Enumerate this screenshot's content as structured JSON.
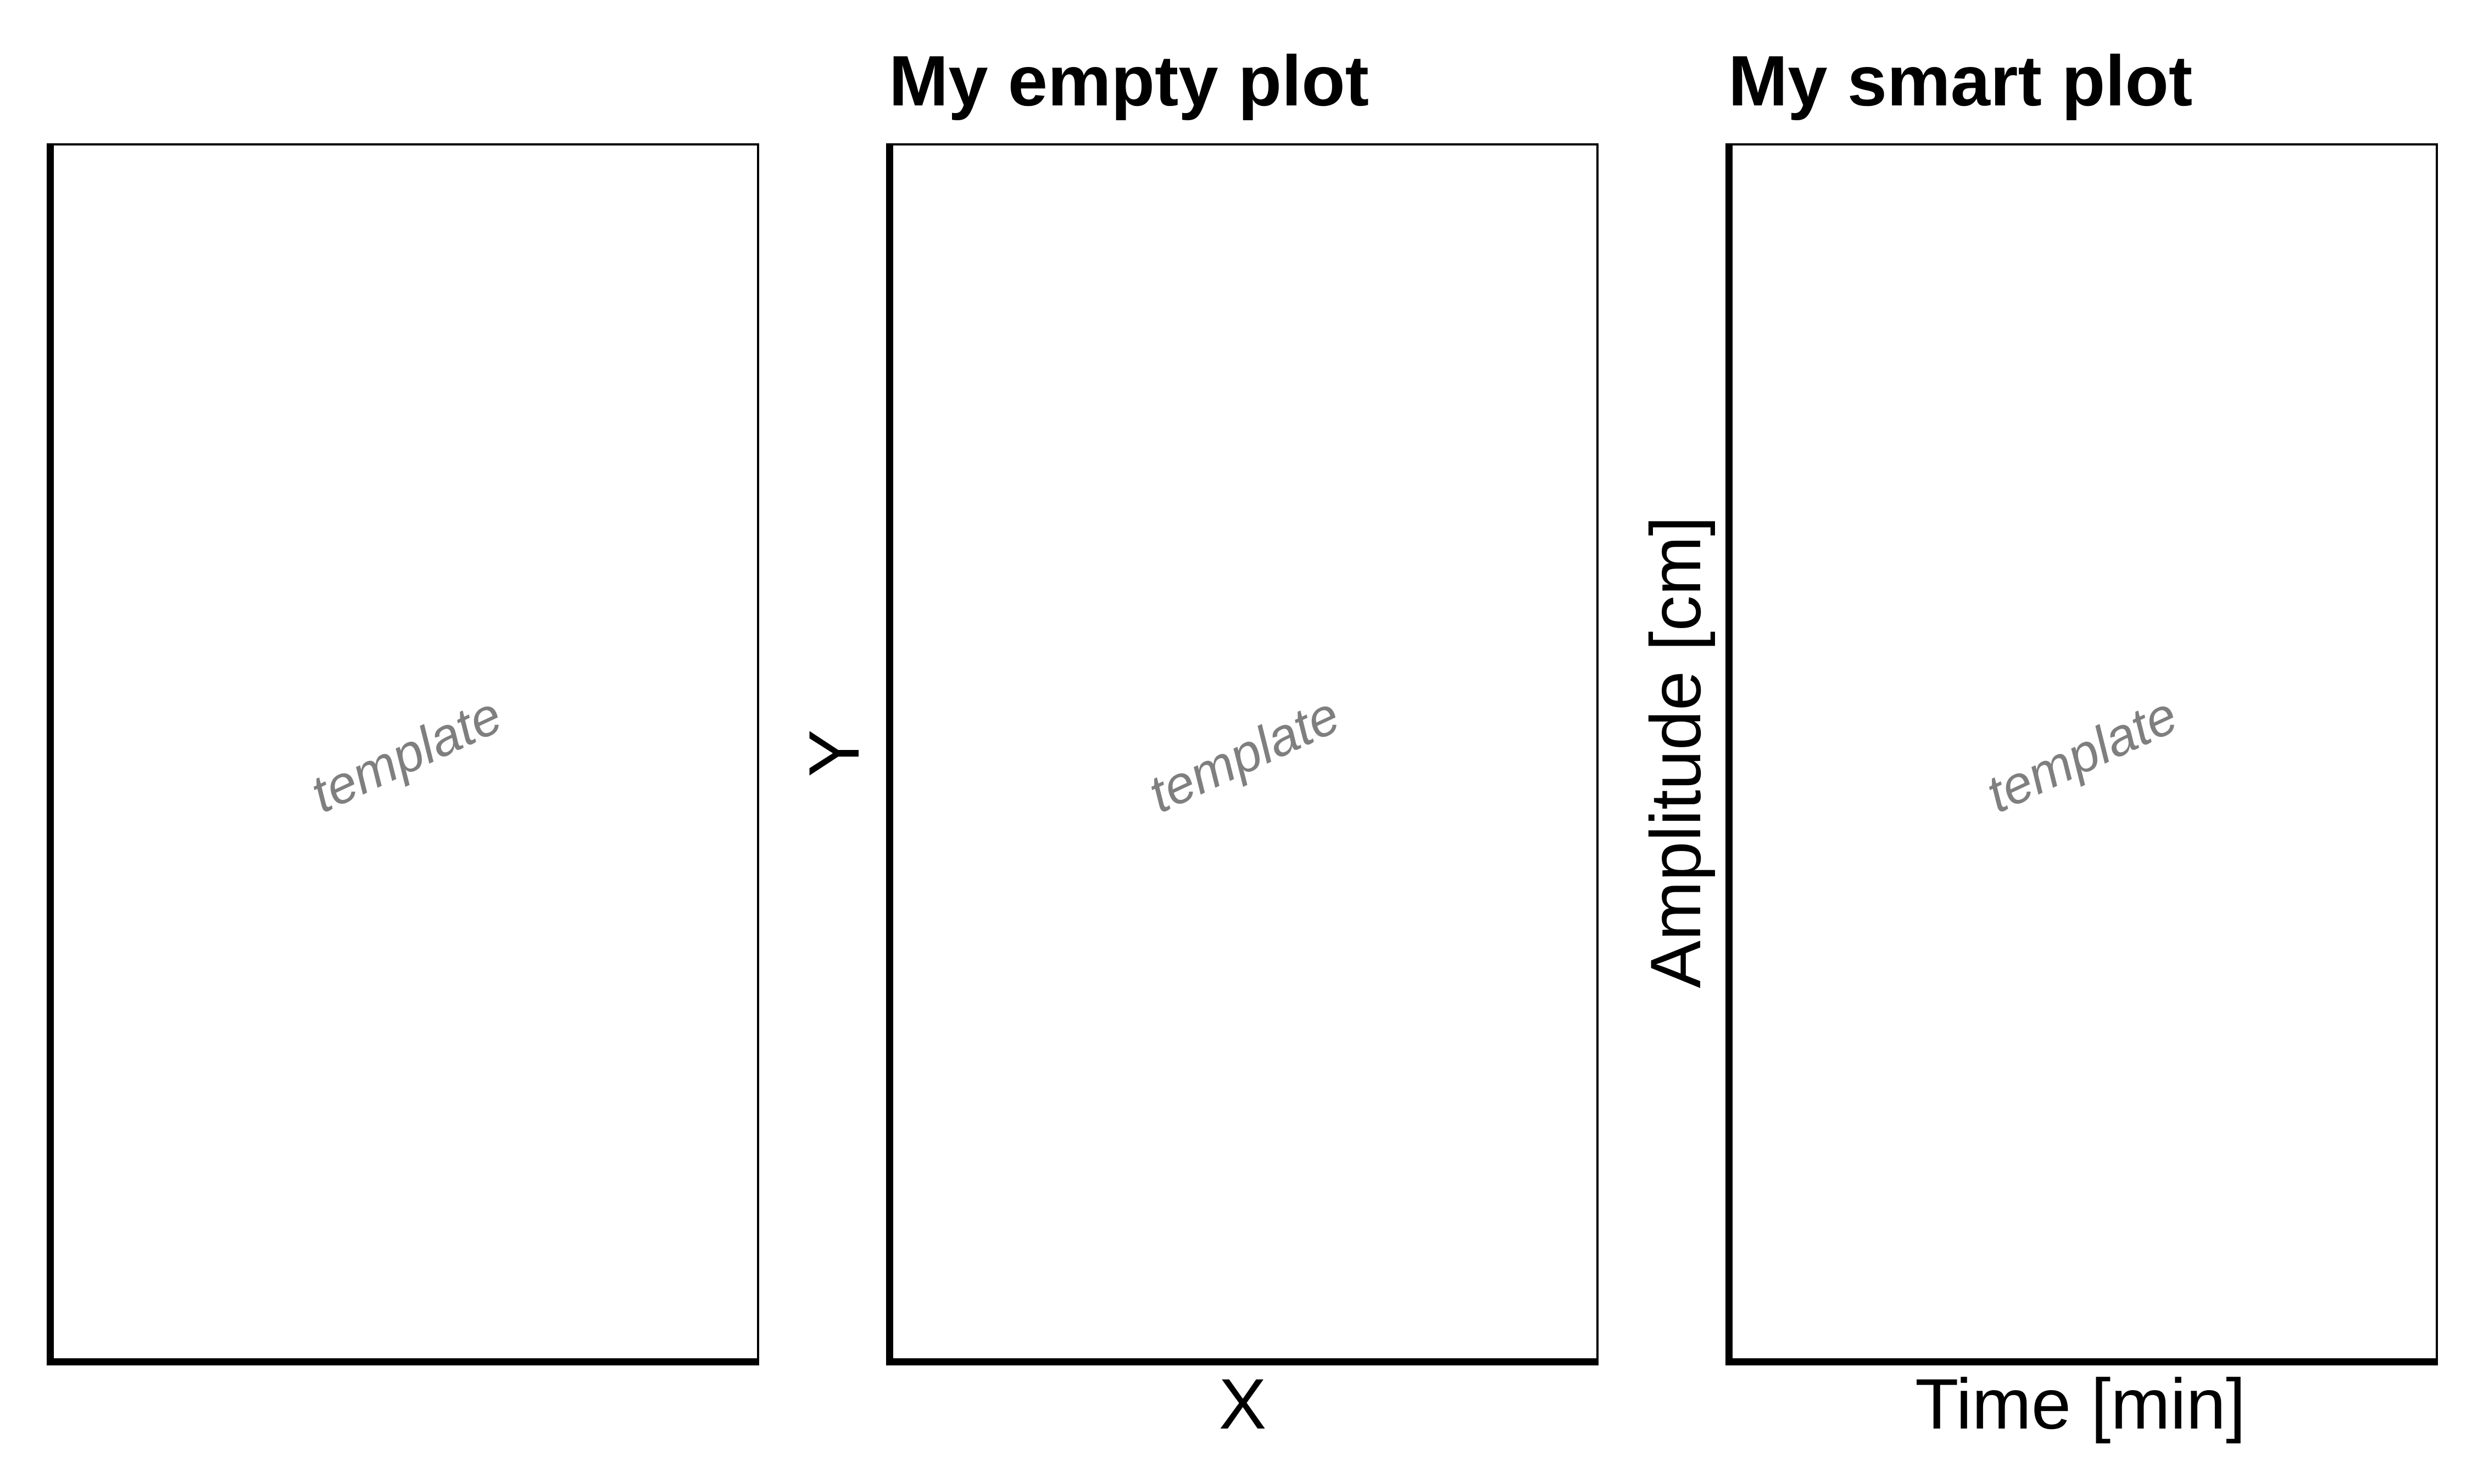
{
  "chart_data": [
    {
      "type": "scatter",
      "title": "",
      "xlabel": "",
      "ylabel": "",
      "x": [],
      "y": [],
      "grid": false,
      "watermark": "template"
    },
    {
      "type": "scatter",
      "title": "My empty plot",
      "xlabel": "X",
      "ylabel": "Y",
      "x": [],
      "y": [],
      "grid": false,
      "watermark": "template"
    },
    {
      "type": "scatter",
      "title": "My smart plot",
      "xlabel": "Time [min]",
      "ylabel": "Amplitude [cm]",
      "x": [],
      "y": [],
      "grid": false,
      "watermark": "template"
    }
  ],
  "colors": {
    "axis": "#000000",
    "watermark": "#7f7f7f",
    "background": "#ffffff"
  }
}
